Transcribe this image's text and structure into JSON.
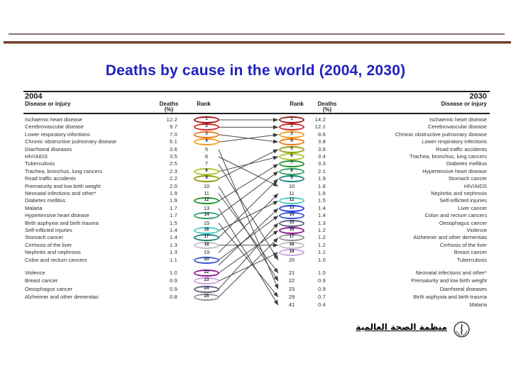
{
  "title": "Deaths by cause in the world (2004, 2030)",
  "header": {
    "year_left": "2004",
    "year_right": "2030",
    "col_disease": "Disease or injury",
    "col_deaths_line1": "Deaths",
    "col_deaths_line2": "(%)",
    "col_rank": "Rank"
  },
  "footer": {
    "org_name_arabic": "منظمة الصحة العالمية",
    "logo": "who-emblem"
  },
  "colors": {
    "title_blue": "#2121be",
    "divider_thin": "#8c7070",
    "divider_thick": "#6e4038",
    "arrow_gray": "#4a4a4a"
  },
  "chart_data": {
    "type": "table",
    "subtype": "rank-slopegraph",
    "title": "Deaths by cause in the world (2004, 2030)",
    "years": [
      "2004",
      "2030"
    ],
    "columns": [
      "Disease or injury",
      "Deaths (%)",
      "Rank"
    ],
    "left_2004": {
      "top": [
        {
          "rank": 1,
          "disease": "Ischaemic heart disease",
          "deaths_pct": "12.2",
          "oval_color": "#9e1212"
        },
        {
          "rank": 2,
          "disease": "Cerebrovascular disease",
          "deaths_pct": "9.7",
          "oval_color": "#d32424"
        },
        {
          "rank": 3,
          "disease": "Lower respiratory infections",
          "deaths_pct": "7.0",
          "oval_color": "#f0750f"
        },
        {
          "rank": 4,
          "disease": "Chronic obstructive pulmonary disease",
          "deaths_pct": "5.1",
          "oval_color": "#f29c1c"
        },
        {
          "rank": 5,
          "disease": "Diarrhoeal diseases",
          "deaths_pct": "3.6",
          "oval_color": null
        },
        {
          "rank": 6,
          "disease": "HIV/AIDS",
          "deaths_pct": "3.5",
          "oval_color": null
        },
        {
          "rank": 7,
          "disease": "Tuberculosis",
          "deaths_pct": "2.5",
          "oval_color": null
        },
        {
          "rank": 8,
          "disease": "Trachea, bronchus, lung cancers",
          "deaths_pct": "2.3",
          "oval_color": "#a6c72a"
        },
        {
          "rank": 9,
          "disease": "Road traffic accidents",
          "deaths_pct": "2.2",
          "oval_color": "#8e9b06"
        },
        {
          "rank": 10,
          "disease": "Prematurity and low birth weight",
          "deaths_pct": "2.0",
          "oval_color": null
        },
        {
          "rank": 11,
          "disease": "Neonatal infections and other*",
          "deaths_pct": "1.9",
          "oval_color": null
        },
        {
          "rank": 12,
          "disease": "Diabetes mellitus",
          "deaths_pct": "1.9",
          "oval_color": "#1d9125"
        },
        {
          "rank": 13,
          "disease": "Malaria",
          "deaths_pct": "1.7",
          "oval_color": null
        },
        {
          "rank": 14,
          "disease": "Hypertensive heart disease",
          "deaths_pct": "1.7",
          "oval_color": "#2e9e63"
        },
        {
          "rank": 15,
          "disease": "Birth asphyxia and birth trauma",
          "deaths_pct": "1.5",
          "oval_color": null
        },
        {
          "rank": 16,
          "disease": "Self-inflicted injuries",
          "deaths_pct": "1.4",
          "oval_color": "#46cbc3"
        },
        {
          "rank": 17,
          "disease": "Stomach cancer",
          "deaths_pct": "1.4",
          "oval_color": "#178079"
        },
        {
          "rank": 18,
          "disease": "Cirrhosis of the liver",
          "deaths_pct": "1.3",
          "oval_color": "#bdbdbd"
        },
        {
          "rank": 19,
          "disease": "Nephritis and nephrosis",
          "deaths_pct": "1.3",
          "oval_color": null
        },
        {
          "rank": 20,
          "disease": "Colon and rectum cancers",
          "deaths_pct": "1.1",
          "oval_color": "#3355cf"
        }
      ],
      "below": [
        {
          "rank": 22,
          "disease": "Violence",
          "deaths_pct": "1.0",
          "oval_color": "#8e128e"
        },
        {
          "rank": 23,
          "disease": "Breast cancer",
          "deaths_pct": "0.9",
          "oval_color": "#c9a2e0"
        },
        {
          "rank": 24,
          "disease": "Oesophagus cancer",
          "deaths_pct": "0.9",
          "oval_color": "#5b5b7e"
        },
        {
          "rank": 25,
          "disease": "Alzheimer and other dementias",
          "deaths_pct": "0.8",
          "oval_color": "#8f8f8f"
        }
      ]
    },
    "right_2030": {
      "top": [
        {
          "rank": 1,
          "disease": "Ischaemic heart disease",
          "deaths_pct": "14.2",
          "oval_color": "#9e1212"
        },
        {
          "rank": 2,
          "disease": "Cerebrovascular disease",
          "deaths_pct": "12.1",
          "oval_color": "#d32424"
        },
        {
          "rank": 3,
          "disease": "Chronic obstructive pulmonary disease",
          "deaths_pct": "8.6",
          "oval_color": "#f29c1c"
        },
        {
          "rank": 4,
          "disease": "Lower respiratory infections",
          "deaths_pct": "3.8",
          "oval_color": "#f0750f"
        },
        {
          "rank": 5,
          "disease": "Road traffic accidents",
          "deaths_pct": "3.6",
          "oval_color": "#8e9b06"
        },
        {
          "rank": 6,
          "disease": "Trachea, bronchus, lung cancers",
          "deaths_pct": "3.4",
          "oval_color": "#a6c72a"
        },
        {
          "rank": 7,
          "disease": "Diabetes mellitus",
          "deaths_pct": "3.3",
          "oval_color": "#1d9125"
        },
        {
          "rank": 8,
          "disease": "Hypertensive heart disease",
          "deaths_pct": "2.1",
          "oval_color": "#2e9e63"
        },
        {
          "rank": 9,
          "disease": "Stomach cancer",
          "deaths_pct": "1.9",
          "oval_color": "#178079"
        },
        {
          "rank": 10,
          "disease": "HIV/AIDS",
          "deaths_pct": "1.8",
          "oval_color": null
        },
        {
          "rank": 11,
          "disease": "Nephritis and nephrosis",
          "deaths_pct": "1.6",
          "oval_color": null
        },
        {
          "rank": 12,
          "disease": "Self-inflicted injuries",
          "deaths_pct": "1.5",
          "oval_color": "#46cbc3"
        },
        {
          "rank": 13,
          "disease": "Liver cancer",
          "deaths_pct": "1.4",
          "oval_color": "#1b35e6"
        },
        {
          "rank": 14,
          "disease": "Colon and rectum cancers",
          "deaths_pct": "1.4",
          "oval_color": "#3355cf"
        },
        {
          "rank": 15,
          "disease": "Oesophagus cancer",
          "deaths_pct": "1.3",
          "oval_color": "#5b5b7e"
        },
        {
          "rank": 16,
          "disease": "Violence",
          "deaths_pct": "1.2",
          "oval_color": "#8e128e"
        },
        {
          "rank": 17,
          "disease": "Alzheimer and other dementias",
          "deaths_pct": "1.2",
          "oval_color": "#8f8f8f"
        },
        {
          "rank": 18,
          "disease": "Cirrhosis of the liver",
          "deaths_pct": "1.2",
          "oval_color": "#bdbdbd"
        },
        {
          "rank": 19,
          "disease": "Breast cancer",
          "deaths_pct": "1.1",
          "oval_color": "#c9a2e0"
        },
        {
          "rank": 20,
          "disease": "Tuberculosis",
          "deaths_pct": "1.0",
          "oval_color": null
        }
      ],
      "below": [
        {
          "rank": 21,
          "disease": "Neonatal infections and other*",
          "deaths_pct": "1.0",
          "oval_color": null
        },
        {
          "rank": 22,
          "disease": "Prematurity and low birth weight",
          "deaths_pct": "0.9",
          "oval_color": null
        },
        {
          "rank": 23,
          "disease": "Diarrhoeal diseases",
          "deaths_pct": "0.9",
          "oval_color": null
        },
        {
          "rank": 29,
          "disease": "Birth asphyxia and birth trauma",
          "deaths_pct": "0.7",
          "oval_color": null
        },
        {
          "rank": 41,
          "disease": "Malaria",
          "deaths_pct": "0.4",
          "oval_color": null
        }
      ]
    },
    "rank_links": [
      [
        1,
        1
      ],
      [
        2,
        2
      ],
      [
        3,
        4
      ],
      [
        4,
        3
      ],
      [
        5,
        23
      ],
      [
        6,
        10
      ],
      [
        7,
        20
      ],
      [
        8,
        6
      ],
      [
        9,
        5
      ],
      [
        10,
        22
      ],
      [
        11,
        21
      ],
      [
        12,
        7
      ],
      [
        13,
        41
      ],
      [
        14,
        8
      ],
      [
        15,
        29
      ],
      [
        16,
        12
      ],
      [
        17,
        9
      ],
      [
        18,
        18
      ],
      [
        19,
        11
      ],
      [
        20,
        14
      ],
      [
        21,
        13
      ],
      [
        22,
        16
      ],
      [
        23,
        19
      ],
      [
        24,
        15
      ],
      [
        25,
        17
      ]
    ]
  }
}
